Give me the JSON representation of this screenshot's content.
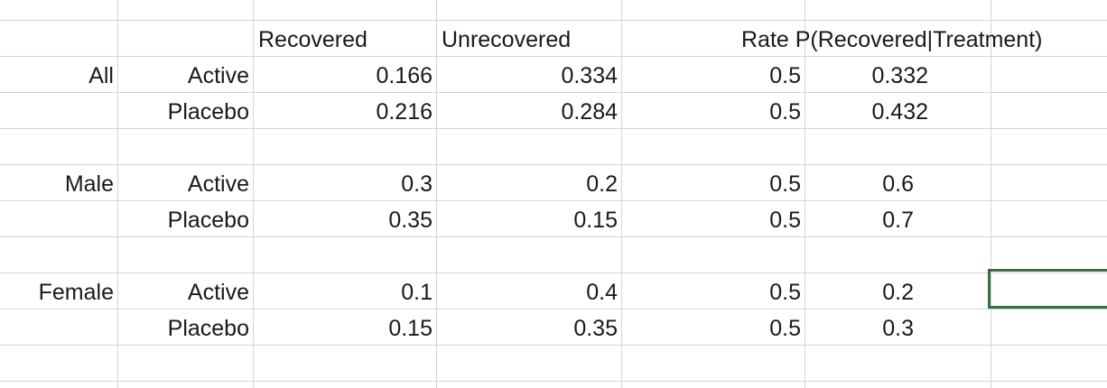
{
  "header": {
    "recovered": "Recovered",
    "unrecovered": "Unrecovered",
    "rate": "Rate P(Recovered|Treatment)"
  },
  "groups": [
    {
      "label": "All",
      "rows": [
        {
          "treatment": "Active",
          "recovered": "0.166",
          "unrecovered": "0.334",
          "p": "0.5",
          "rate": "0.332"
        },
        {
          "treatment": "Placebo",
          "recovered": "0.216",
          "unrecovered": "0.284",
          "p": "0.5",
          "rate": "0.432"
        }
      ]
    },
    {
      "label": "Male",
      "rows": [
        {
          "treatment": "Active",
          "recovered": "0.3",
          "unrecovered": "0.2",
          "p": "0.5",
          "rate": "0.6"
        },
        {
          "treatment": "Placebo",
          "recovered": "0.35",
          "unrecovered": "0.15",
          "p": "0.5",
          "rate": "0.7"
        }
      ]
    },
    {
      "label": "Female",
      "rows": [
        {
          "treatment": "Active",
          "recovered": "0.1",
          "unrecovered": "0.4",
          "p": "0.5",
          "rate": "0.2"
        },
        {
          "treatment": "Placebo",
          "recovered": "0.15",
          "unrecovered": "0.35",
          "p": "0.5",
          "rate": "0.3"
        }
      ]
    }
  ]
}
